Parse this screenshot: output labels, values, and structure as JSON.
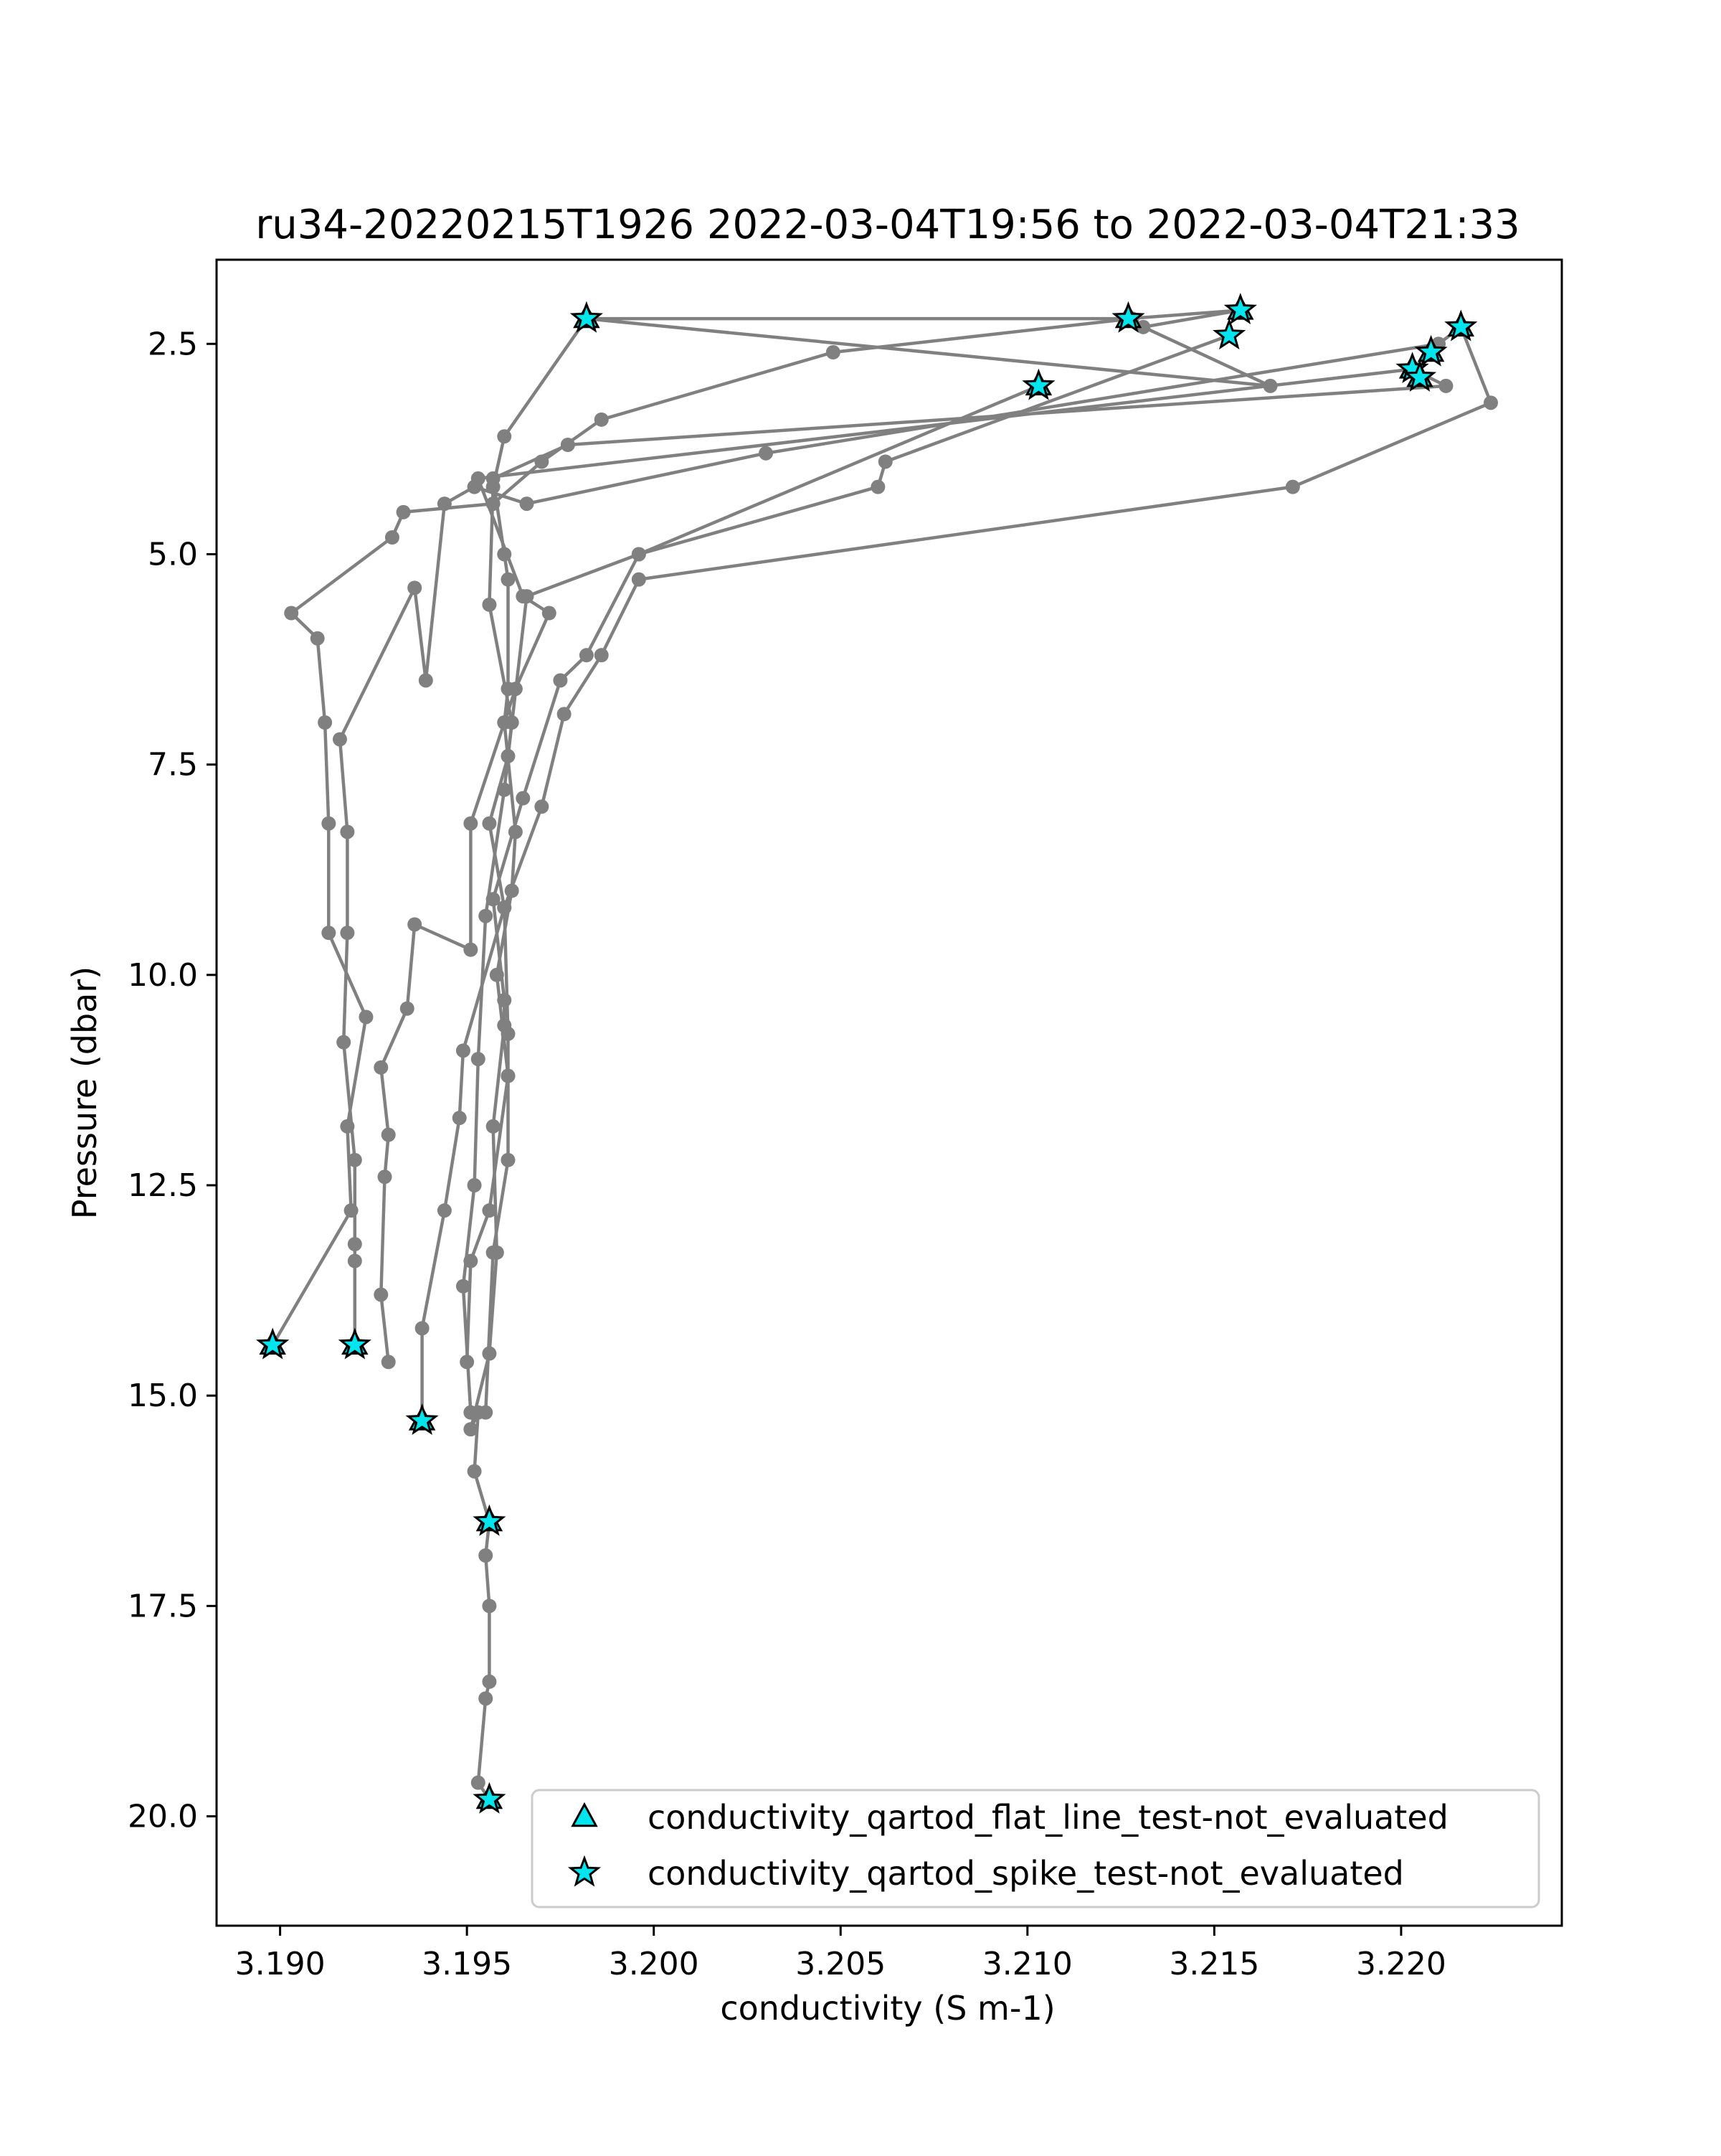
{
  "chart_data": {
    "type": "line",
    "title": "ru34-20220215T1926 2022-03-04T19:56 to 2022-03-04T21:33",
    "xlabel": "conductivity (S m-1)",
    "ylabel": "Pressure (dbar)",
    "xlim": [
      3.1883,
      3.2243
    ],
    "ylim": [
      21.3,
      1.5
    ],
    "y_inverted": true,
    "x_ticks": [
      3.19,
      3.195,
      3.2,
      3.205,
      3.21,
      3.215,
      3.22
    ],
    "x_tick_labels": [
      "3.190",
      "3.195",
      "3.200",
      "3.205",
      "3.210",
      "3.215",
      "3.220"
    ],
    "y_ticks": [
      2.5,
      5.0,
      7.5,
      10.0,
      12.5,
      15.0,
      17.5,
      20.0
    ],
    "y_tick_labels": [
      "2.5",
      "5.0",
      "7.5",
      "10.0",
      "12.5",
      "15.0",
      "17.5",
      "20.0"
    ],
    "grid": false,
    "legend_position": "lower right",
    "colors": {
      "profile_line": "#808080",
      "marker_fill": "#00e5ee",
      "marker_edge": "#000000"
    },
    "series": [
      {
        "values": [
          [
            3.1956,
            19.8
          ],
          [
            3.1953,
            19.6
          ],
          [
            3.1955,
            18.6
          ],
          [
            3.1956,
            18.4
          ],
          [
            3.1956,
            17.5
          ],
          [
            3.1955,
            16.9
          ],
          [
            3.1956,
            16.5
          ],
          [
            3.1952,
            15.9
          ],
          [
            3.1953,
            15.2
          ],
          [
            3.1951,
            15.4
          ],
          [
            3.1956,
            14.5
          ],
          [
            3.1958,
            13.3
          ],
          [
            3.1957,
            11.8
          ],
          [
            3.196,
            10.6
          ],
          [
            3.196,
            10.3
          ],
          [
            3.1957,
            9.1
          ],
          [
            3.1965,
            7.9
          ],
          [
            3.1975,
            6.5
          ],
          [
            3.1982,
            6.2
          ],
          [
            3.1996,
            5.0
          ],
          [
            3.206,
            4.2
          ],
          [
            3.2062,
            3.9
          ],
          [
            3.2154,
            2.4
          ]
        ]
      },
      {
        "values": [
          [
            3.1938,
            15.3
          ],
          [
            3.1938,
            14.2
          ],
          [
            3.1944,
            12.8
          ],
          [
            3.1948,
            11.7
          ],
          [
            3.1949,
            10.9
          ],
          [
            3.196,
            9.2
          ],
          [
            3.1956,
            8.2
          ],
          [
            3.1961,
            7.4
          ],
          [
            3.1966,
            5.5
          ],
          [
            3.1996,
            5.0
          ],
          [
            3.2103,
            3.0
          ]
        ]
      },
      {
        "values": [
          [
            3.1898,
            14.4
          ],
          [
            3.1919,
            12.8
          ],
          [
            3.1918,
            11.8
          ],
          [
            3.1923,
            10.5
          ],
          [
            3.1913,
            9.5
          ],
          [
            3.1913,
            8.2
          ],
          [
            3.1912,
            7.0
          ],
          [
            3.191,
            6.0
          ],
          [
            3.1903,
            5.7
          ],
          [
            3.193,
            4.8
          ],
          [
            3.1933,
            4.5
          ],
          [
            3.1957,
            4.4
          ],
          [
            3.197,
            3.9
          ],
          [
            3.1986,
            3.4
          ],
          [
            3.2048,
            2.6
          ],
          [
            3.2128,
            2.2
          ]
        ]
      },
      {
        "values": [
          [
            3.192,
            14.4
          ],
          [
            3.192,
            13.2
          ],
          [
            3.192,
            13.4
          ],
          [
            3.192,
            12.2
          ],
          [
            3.1917,
            10.8
          ],
          [
            3.1918,
            9.5
          ],
          [
            3.1918,
            8.3
          ],
          [
            3.1916,
            7.2
          ],
          [
            3.1936,
            5.4
          ],
          [
            3.1939,
            6.5
          ],
          [
            3.1944,
            4.4
          ],
          [
            3.1952,
            4.2
          ],
          [
            3.1966,
            4.4
          ],
          [
            3.203,
            3.8
          ],
          [
            3.221,
            2.5
          ],
          [
            3.2216,
            2.3
          ],
          [
            3.2224,
            3.2
          ],
          [
            3.2171,
            4.2
          ],
          [
            3.1996,
            5.3
          ],
          [
            3.1986,
            6.2
          ],
          [
            3.1976,
            6.9
          ],
          [
            3.197,
            8.0
          ],
          [
            3.196,
            9.2
          ],
          [
            3.1961,
            10.7
          ],
          [
            3.1961,
            11.2
          ],
          [
            3.1961,
            12.2
          ],
          [
            3.1957,
            13.3
          ],
          [
            3.1955,
            15.2
          ]
        ]
      },
      {
        "values": [
          [
            3.1929,
            14.6
          ],
          [
            3.1927,
            13.8
          ],
          [
            3.1928,
            12.4
          ],
          [
            3.1929,
            11.9
          ],
          [
            3.1927,
            11.1
          ],
          [
            3.1934,
            10.4
          ],
          [
            3.1936,
            9.4
          ],
          [
            3.1951,
            9.7
          ],
          [
            3.1951,
            8.2
          ],
          [
            3.1963,
            6.6
          ],
          [
            3.1972,
            5.7
          ],
          [
            3.1965,
            5.5
          ],
          [
            3.1953,
            4.1
          ],
          [
            3.2203,
            2.8
          ],
          [
            3.2208,
            2.6
          ],
          [
            3.2203,
            2.8
          ],
          [
            3.2212,
            3.0
          ],
          [
            3.1977,
            3.7
          ],
          [
            3.1957,
            4.1
          ],
          [
            3.196,
            5.0
          ],
          [
            3.1961,
            5.3
          ],
          [
            3.1961,
            6.6
          ],
          [
            3.196,
            7.0
          ],
          [
            3.1963,
            8.3
          ],
          [
            3.1962,
            9.0
          ],
          [
            3.1958,
            10.0
          ],
          [
            3.1961,
            11.2
          ],
          [
            3.1956,
            12.8
          ],
          [
            3.1951,
            13.4
          ],
          [
            3.195,
            14.6
          ]
        ]
      },
      {
        "values": [
          [
            3.1951,
            15.2
          ],
          [
            3.1949,
            13.7
          ],
          [
            3.1952,
            12.5
          ],
          [
            3.1953,
            11.0
          ],
          [
            3.1955,
            9.3
          ],
          [
            3.196,
            7.8
          ],
          [
            3.1962,
            7.0
          ],
          [
            3.1956,
            5.6
          ],
          [
            3.1957,
            4.2
          ],
          [
            3.196,
            3.6
          ],
          [
            3.1982,
            2.2
          ],
          [
            3.2127,
            2.2
          ],
          [
            3.2157,
            2.1
          ],
          [
            3.2131,
            2.3
          ],
          [
            3.2165,
            3.0
          ],
          [
            3.1982,
            2.2
          ]
        ]
      }
    ],
    "flat_line_flags": {
      "label": "conductivity_qartod_flat_line_test-not_evaluated",
      "points": [
        [
          3.1982,
          2.2
        ],
        [
          3.2127,
          2.2
        ],
        [
          3.2157,
          2.1
        ],
        [
          3.2103,
          3.0
        ],
        [
          3.2216,
          2.3
        ],
        [
          3.2208,
          2.6
        ],
        [
          3.2203,
          2.8
        ],
        [
          3.2205,
          2.9
        ],
        [
          3.1898,
          14.4
        ],
        [
          3.192,
          14.4
        ],
        [
          3.1938,
          15.3
        ],
        [
          3.1956,
          16.5
        ],
        [
          3.1956,
          19.8
        ]
      ]
    },
    "spike_flags": {
      "label": "conductivity_qartod_spike_test-not_evaluated",
      "points": [
        [
          3.1982,
          2.2
        ],
        [
          3.2127,
          2.2
        ],
        [
          3.2157,
          2.1
        ],
        [
          3.2154,
          2.4
        ],
        [
          3.2103,
          3.0
        ],
        [
          3.2216,
          2.3
        ],
        [
          3.2208,
          2.6
        ],
        [
          3.2203,
          2.8
        ],
        [
          3.2205,
          2.9
        ],
        [
          3.1898,
          14.4
        ],
        [
          3.192,
          14.4
        ],
        [
          3.1938,
          15.3
        ],
        [
          3.1956,
          16.5
        ],
        [
          3.1956,
          19.8
        ]
      ]
    }
  }
}
